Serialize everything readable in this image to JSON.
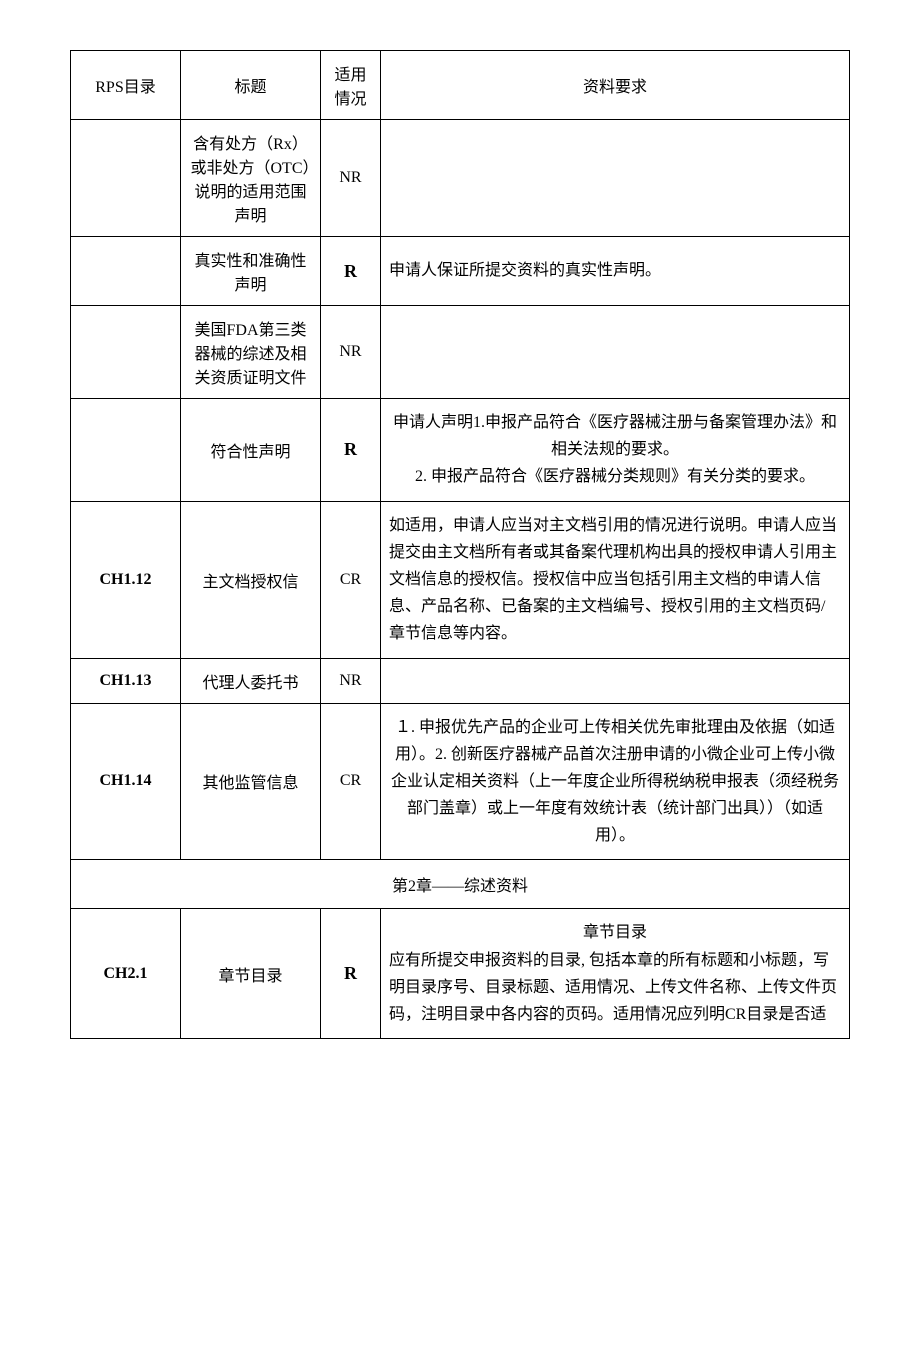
{
  "headers": {
    "rps": "RPS目录",
    "title": "标题",
    "applic": "适用情况",
    "req": "资料要求"
  },
  "rows": [
    {
      "rps": "",
      "title": "含有处方（Rx）或非处方（OTC）说明的适用范围声明",
      "applic": "NR",
      "applic_bold": false,
      "req": "",
      "req_align": "left"
    },
    {
      "rps": "",
      "title": "真实性和准确性声明",
      "applic": "R",
      "applic_bold": true,
      "req": "申请人保证所提交资料的真实性声明。",
      "req_align": "left"
    },
    {
      "rps": "",
      "title": "美国FDA第三类器械的综述及相关资质证明文件",
      "applic": "NR",
      "applic_bold": false,
      "req": "",
      "req_align": "left"
    },
    {
      "rps": "",
      "title": "符合性声明",
      "applic": "R",
      "applic_bold": true,
      "req": "申请人声明1.申报产品符合《医疗器械注册与备案管理办法》和相关法规的要求。\n2. 申报产品符合《医疗器械分类规则》有关分类的要求。",
      "req_align": "center"
    },
    {
      "rps": "CH1.12",
      "title": "主文档授权信",
      "applic": "CR",
      "applic_bold": false,
      "req": "如适用，申请人应当对主文档引用的情况进行说明。申请人应当提交由主文档所有者或其备案代理机构出具的授权申请人引用主文档信息的授权信。授权信中应当包括引用主文档的申请人信息、产品名称、已备案的主文档编号、授权引用的主文档页码/章节信息等内容。",
      "req_align": "left"
    },
    {
      "rps": "CH1.13",
      "title": "代理人委托书",
      "applic": "NR",
      "applic_bold": false,
      "req": "",
      "req_align": "left"
    },
    {
      "rps": "CH1.14",
      "title": "其他监管信息",
      "applic": "CR",
      "applic_bold": false,
      "req": "１. 申报优先产品的企业可上传相关优先审批理由及依据（如适用）。2. 创新医疗器械产品首次注册申请的小微企业可上传小微企业认定相关资料（上一年度企业所得税纳税申报表（须经税务部门盖章）或上一年度有效统计表（统计部门出具））（如适用）。",
      "req_align": "center"
    }
  ],
  "section": "第2章——综述资料",
  "rows2": [
    {
      "rps": "CH2.1",
      "title": "章节目录",
      "applic": "R",
      "applic_bold": true,
      "req_title": "章节目录",
      "req": "应有所提交申报资料的目录, 包括本章的所有标题和小标题，写明目录序号、目录标题、适用情况、上传文件名称、上传文件页码，注明目录中各内容的页码。适用情况应列明CR目录是否适",
      "req_align": "left"
    }
  ]
}
